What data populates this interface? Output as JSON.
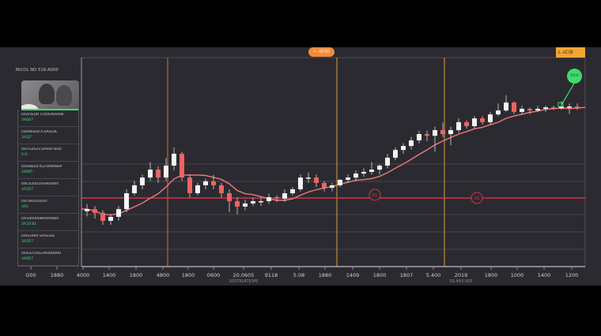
{
  "sidebar": {
    "title": "NICOL NO 518-A000",
    "items": [
      {
        "label": "OGV2EDR COOSAOOSN",
        "value": "3AD07"
      },
      {
        "label": "ODVNSDO7LSASLAL",
        "value": "3A2J7"
      },
      {
        "label": "OOTS2S2154A0070D0",
        "value": "S.D"
      },
      {
        "label": "OOS8020 IS3.008A80P",
        "value": "34B8T"
      },
      {
        "label": "O0C02001ASA60000",
        "value": "3A5D7"
      },
      {
        "label": "O0T8OO2DOO",
        "value": "3A5"
      },
      {
        "label": "OV100000BA0A9000",
        "value": "3A1D3D"
      },
      {
        "label": "OOS1000 SASLaaL",
        "value": "3A2D7"
      },
      {
        "label": "OOGSTDO23A0D0000",
        "value": "3A6D7"
      }
    ]
  },
  "header": {
    "pill_label": "• -I£00",
    "box_label": "L oCI8",
    "bubble_label": "0/L0"
  },
  "colors": {
    "up": "#f4f4f4",
    "down": "#f06262",
    "ma": "#f07a7a",
    "level": "#d8344e",
    "vline_1": "#c0603a",
    "vline_2": "#c08a3a",
    "accent_green": "#3ddc6a"
  },
  "chart_data": {
    "type": "candlestick",
    "title": "",
    "xlabel": "",
    "ylabel": "",
    "ylim": [
      0,
      100
    ],
    "grid": true,
    "x_tick_labels": [
      "G00",
      "1880",
      "4000",
      "1400",
      "1800",
      "4800",
      "1800",
      "0600",
      "20.0605",
      "9118",
      "5.08",
      "1880",
      "1409",
      "1800",
      "1807",
      "5.400",
      "2019",
      "1800",
      "1000",
      "1400",
      "1200"
    ],
    "x_sub_labels": [
      "SSSTRLRTIOPE",
      "SS.4A3-S05"
    ],
    "open": [
      26.5,
      27.5,
      25.7,
      21.9,
      23.8,
      27.5,
      35.1,
      38.9,
      42.6,
      46.4,
      42.6,
      48.3,
      54.0,
      42.6,
      35.1,
      38.9,
      40.8,
      38.9,
      35.1,
      31.3,
      28.7,
      30.2,
      31.3,
      31.3,
      33.2,
      32.5,
      35.1,
      37.0,
      42.6,
      42.6,
      40.0,
      37.7,
      38.9,
      41.5,
      42.6,
      44.5,
      45.3,
      46.4,
      48.3,
      52.1,
      55.8,
      57.7,
      60.4,
      63.4,
      62.6,
      65.3,
      63.4,
      65.3,
      69.1,
      67.2,
      70.9,
      69.1,
      72.8,
      74.7,
      78.5,
      74.0,
      75.5,
      74.7,
      75.5,
      76.2,
      75.8,
      76.6,
      76.6
    ],
    "high": [
      30,
      29,
      27,
      25,
      29,
      37,
      41,
      44,
      50,
      48,
      52,
      57,
      55,
      44,
      40,
      42,
      44,
      40,
      37,
      33,
      32,
      33,
      33,
      35,
      34,
      37,
      38,
      44,
      45,
      44,
      41,
      40,
      42,
      44,
      46,
      47,
      50,
      49,
      54,
      57,
      59,
      62,
      65,
      65,
      67,
      69,
      67,
      71,
      70,
      72,
      72,
      74,
      78,
      82,
      79,
      77,
      76,
      77,
      77,
      77,
      79,
      78,
      78
    ],
    "low": [
      24,
      23,
      20,
      20,
      22,
      26,
      34,
      37,
      41,
      40,
      41,
      46,
      41,
      33,
      34,
      37,
      37,
      33,
      26,
      25,
      27,
      29,
      29,
      30,
      31,
      31,
      34,
      36,
      40,
      38,
      36,
      36,
      38,
      40,
      41,
      43,
      44,
      44,
      47,
      51,
      54,
      56,
      59,
      60,
      55,
      62,
      58,
      64,
      66,
      66,
      68,
      68,
      72,
      74,
      73,
      73,
      73,
      74,
      74,
      75,
      75,
      73,
      75
    ],
    "close": [
      27.5,
      25.7,
      21.9,
      23.8,
      27.5,
      35.1,
      38.9,
      42.6,
      46.4,
      42.6,
      48.3,
      54.0,
      42.6,
      35.1,
      38.9,
      40.8,
      38.9,
      35.1,
      31.3,
      28.7,
      30.2,
      31.3,
      31.3,
      33.2,
      32.5,
      35.1,
      37.0,
      42.6,
      42.6,
      40.0,
      37.7,
      38.9,
      41.5,
      42.6,
      44.5,
      45.3,
      46.4,
      48.3,
      52.1,
      55.8,
      57.7,
      60.4,
      63.4,
      62.6,
      65.3,
      63.4,
      65.3,
      69.1,
      67.2,
      70.9,
      69.1,
      72.8,
      74.7,
      78.5,
      74.0,
      75.5,
      74.7,
      75.5,
      76.2,
      75.8,
      76.6,
      76.6,
      75.8
    ],
    "level_line": 32.8,
    "level_markers": [
      "01",
      "01"
    ]
  }
}
